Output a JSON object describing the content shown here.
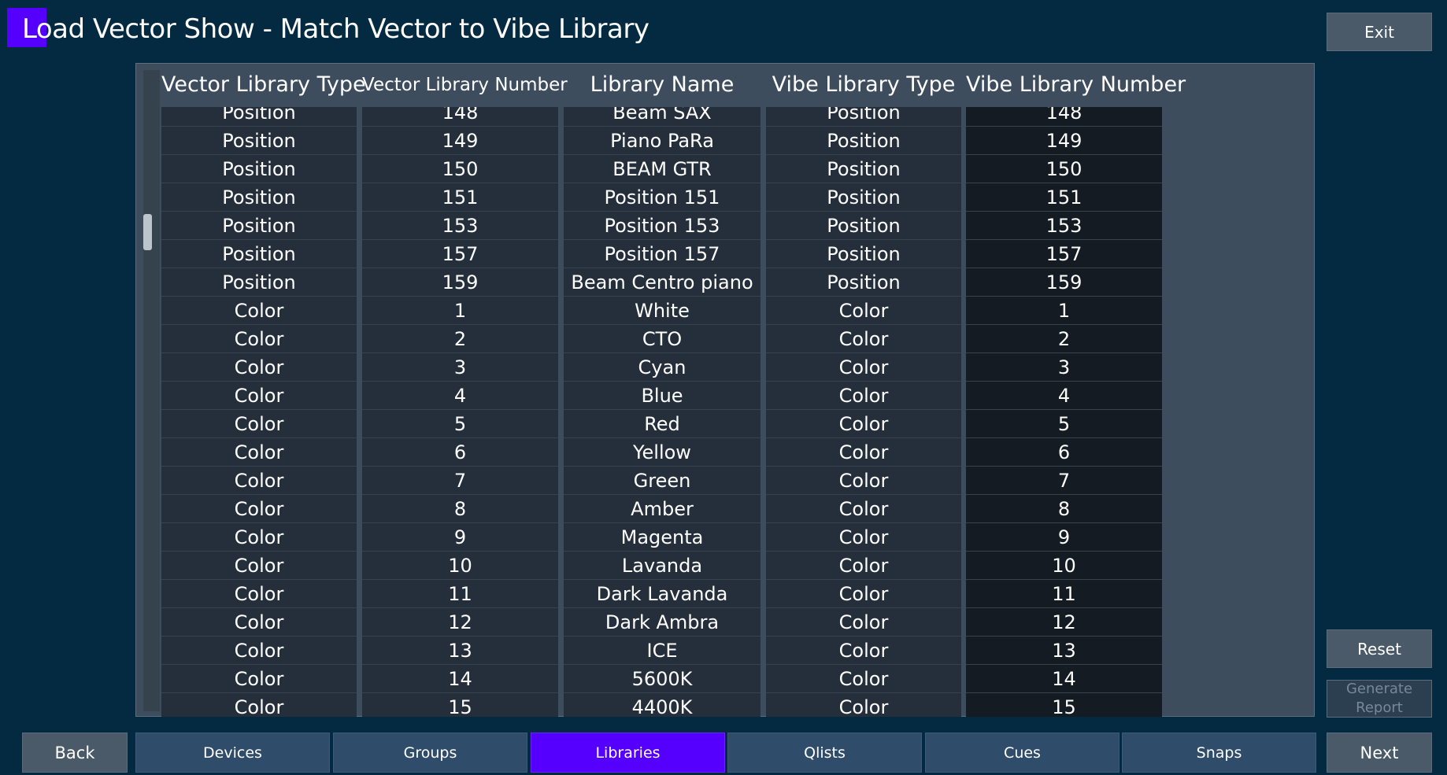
{
  "title": "Load Vector Show - Match Vector to Vibe Library",
  "buttons": {
    "exit": "Exit",
    "reset": "Reset",
    "generate_report": "Generate Report",
    "back": "Back",
    "next": "Next"
  },
  "tabs": [
    {
      "label": "Devices",
      "active": false
    },
    {
      "label": "Groups",
      "active": false
    },
    {
      "label": "Libraries",
      "active": true
    },
    {
      "label": "Qlists",
      "active": false
    },
    {
      "label": "Cues",
      "active": false
    },
    {
      "label": "Snaps",
      "active": false
    }
  ],
  "table": {
    "headers": [
      "Vector Library Type",
      "Vector Library Number",
      "Library Name",
      "Vibe Library Type",
      "Vibe Library Number"
    ],
    "rows": [
      [
        "Position",
        "148",
        "Beam SAX",
        "Position",
        "148"
      ],
      [
        "Position",
        "149",
        "Piano PaRa",
        "Position",
        "149"
      ],
      [
        "Position",
        "150",
        "BEAM GTR",
        "Position",
        "150"
      ],
      [
        "Position",
        "151",
        "Position 151",
        "Position",
        "151"
      ],
      [
        "Position",
        "153",
        "Position 153",
        "Position",
        "153"
      ],
      [
        "Position",
        "157",
        "Position 157",
        "Position",
        "157"
      ],
      [
        "Position",
        "159",
        "Beam Centro piano",
        "Position",
        "159"
      ],
      [
        "Color",
        "1",
        "White",
        "Color",
        "1"
      ],
      [
        "Color",
        "2",
        "CTO",
        "Color",
        "2"
      ],
      [
        "Color",
        "3",
        "Cyan",
        "Color",
        "3"
      ],
      [
        "Color",
        "4",
        "Blue",
        "Color",
        "4"
      ],
      [
        "Color",
        "5",
        "Red",
        "Color",
        "5"
      ],
      [
        "Color",
        "6",
        "Yellow",
        "Color",
        "6"
      ],
      [
        "Color",
        "7",
        "Green",
        "Color",
        "7"
      ],
      [
        "Color",
        "8",
        "Amber",
        "Color",
        "8"
      ],
      [
        "Color",
        "9",
        "Magenta",
        "Color",
        "9"
      ],
      [
        "Color",
        "10",
        "Lavanda",
        "Color",
        "10"
      ],
      [
        "Color",
        "11",
        "Dark Lavanda",
        "Color",
        "11"
      ],
      [
        "Color",
        "12",
        "Dark Ambra",
        "Color",
        "12"
      ],
      [
        "Color",
        "13",
        "ICE",
        "Color",
        "13"
      ],
      [
        "Color",
        "14",
        "5600K",
        "Color",
        "14"
      ],
      [
        "Color",
        "15",
        "4400K",
        "Color",
        "15"
      ]
    ]
  },
  "colors": {
    "background": "#032a40",
    "accent": "#5500ff",
    "tab": "#2f4d6a",
    "button": "#4a5a68"
  }
}
